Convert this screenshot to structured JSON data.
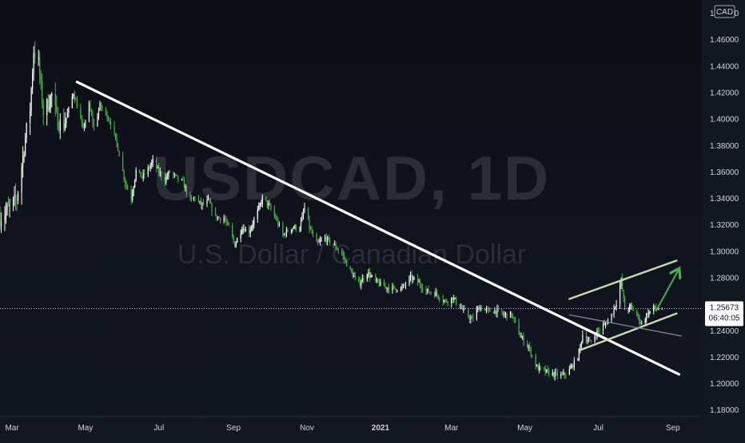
{
  "chart_data": {
    "type": "candlestick",
    "watermark": {
      "symbol_text": "USDCAD, 1D",
      "description": "U.S. Dollar / Canadian Dollar"
    },
    "currency_label": "CAD",
    "y_ticks": [
      "1.48000",
      "1.46000",
      "1.44000",
      "1.42000",
      "1.40000",
      "1.38000",
      "1.36000",
      "1.34000",
      "1.32000",
      "1.30000",
      "1.28000",
      "1.24000",
      "1.22000",
      "1.20000",
      "1.18000"
    ],
    "y_tick_values": [
      1.48,
      1.46,
      1.44,
      1.42,
      1.4,
      1.38,
      1.36,
      1.34,
      1.32,
      1.3,
      1.28,
      1.24,
      1.22,
      1.2,
      1.18
    ],
    "ylim": [
      1.175,
      1.49
    ],
    "x_ticks": [
      "Mar",
      "May",
      "Jul",
      "Sep",
      "Nov",
      "2021",
      "Mar",
      "May",
      "Jul",
      "Sep"
    ],
    "x_tick_dates": [
      "2020-03-01",
      "2020-05-01",
      "2020-07-01",
      "2020-09-01",
      "2020-11-01",
      "2021-01-01",
      "2021-03-01",
      "2021-05-01",
      "2021-07-01",
      "2021-09-01"
    ],
    "xlim": [
      "2020-02-20",
      "2021-09-25"
    ],
    "current_price": {
      "value": 1.25673,
      "label": "1.25673",
      "countdown": "06:40:05",
      "color": "#ffffff"
    },
    "colors": {
      "up": "#ffffff",
      "down": "#4caf50",
      "background": "#131722",
      "text": "#d1d4dc"
    },
    "price_path": [
      [
        "2020-02-20",
        1.325
      ],
      [
        "2020-02-28",
        1.333
      ],
      [
        "2020-03-05",
        1.34
      ],
      [
        "2020-03-09",
        1.365
      ],
      [
        "2020-03-13",
        1.392
      ],
      [
        "2020-03-16",
        1.408
      ],
      [
        "2020-03-19",
        1.452
      ],
      [
        "2020-03-23",
        1.442
      ],
      [
        "2020-03-27",
        1.405
      ],
      [
        "2020-03-31",
        1.412
      ],
      [
        "2020-04-03",
        1.418
      ],
      [
        "2020-04-08",
        1.398
      ],
      [
        "2020-04-13",
        1.395
      ],
      [
        "2020-04-17",
        1.407
      ],
      [
        "2020-04-21",
        1.42
      ],
      [
        "2020-04-24",
        1.41
      ],
      [
        "2020-04-29",
        1.392
      ],
      [
        "2020-05-04",
        1.41
      ],
      [
        "2020-05-08",
        1.394
      ],
      [
        "2020-05-13",
        1.41
      ],
      [
        "2020-05-18",
        1.404
      ],
      [
        "2020-05-22",
        1.397
      ],
      [
        "2020-05-28",
        1.378
      ],
      [
        "2020-06-03",
        1.352
      ],
      [
        "2020-06-08",
        1.34
      ],
      [
        "2020-06-12",
        1.361
      ],
      [
        "2020-06-17",
        1.356
      ],
      [
        "2020-06-22",
        1.362
      ],
      [
        "2020-06-26",
        1.368
      ],
      [
        "2020-07-01",
        1.36
      ],
      [
        "2020-07-06",
        1.354
      ],
      [
        "2020-07-10",
        1.36
      ],
      [
        "2020-07-15",
        1.356
      ],
      [
        "2020-07-21",
        1.352
      ],
      [
        "2020-07-27",
        1.338
      ],
      [
        "2020-07-31",
        1.341
      ],
      [
        "2020-08-05",
        1.335
      ],
      [
        "2020-08-11",
        1.338
      ],
      [
        "2020-08-17",
        1.326
      ],
      [
        "2020-08-24",
        1.325
      ],
      [
        "2020-08-28",
        1.318
      ],
      [
        "2020-09-02",
        1.305
      ],
      [
        "2020-09-08",
        1.318
      ],
      [
        "2020-09-14",
        1.315
      ],
      [
        "2020-09-21",
        1.33
      ],
      [
        "2020-09-25",
        1.34
      ],
      [
        "2020-09-30",
        1.335
      ],
      [
        "2020-10-06",
        1.325
      ],
      [
        "2020-10-12",
        1.312
      ],
      [
        "2020-10-19",
        1.318
      ],
      [
        "2020-10-26",
        1.318
      ],
      [
        "2020-10-30",
        1.333
      ],
      [
        "2020-11-03",
        1.318
      ],
      [
        "2020-11-09",
        1.305
      ],
      [
        "2020-11-16",
        1.31
      ],
      [
        "2020-11-23",
        1.305
      ],
      [
        "2020-11-30",
        1.298
      ],
      [
        "2020-12-07",
        1.285
      ],
      [
        "2020-12-14",
        1.275
      ],
      [
        "2020-12-21",
        1.284
      ],
      [
        "2020-12-28",
        1.277
      ],
      [
        "2021-01-05",
        1.273
      ],
      [
        "2021-01-11",
        1.272
      ],
      [
        "2021-01-19",
        1.272
      ],
      [
        "2021-01-26",
        1.28
      ],
      [
        "2021-02-01",
        1.277
      ],
      [
        "2021-02-08",
        1.27
      ],
      [
        "2021-02-16",
        1.268
      ],
      [
        "2021-02-24",
        1.262
      ],
      [
        "2021-03-02",
        1.265
      ],
      [
        "2021-03-10",
        1.256
      ],
      [
        "2021-03-18",
        1.248
      ],
      [
        "2021-03-24",
        1.258
      ],
      [
        "2021-03-31",
        1.255
      ],
      [
        "2021-04-07",
        1.255
      ],
      [
        "2021-04-13",
        1.252
      ],
      [
        "2021-04-20",
        1.252
      ],
      [
        "2021-04-27",
        1.236
      ],
      [
        "2021-05-04",
        1.228
      ],
      [
        "2021-05-11",
        1.212
      ],
      [
        "2021-05-18",
        1.209
      ],
      [
        "2021-05-25",
        1.207
      ],
      [
        "2021-06-01",
        1.206
      ],
      [
        "2021-06-07",
        1.21
      ],
      [
        "2021-06-14",
        1.22
      ],
      [
        "2021-06-18",
        1.237
      ],
      [
        "2021-06-24",
        1.231
      ],
      [
        "2021-06-30",
        1.239
      ],
      [
        "2021-07-07",
        1.245
      ],
      [
        "2021-07-12",
        1.252
      ],
      [
        "2021-07-16",
        1.262
      ],
      [
        "2021-07-20",
        1.278
      ],
      [
        "2021-07-23",
        1.256
      ],
      [
        "2021-07-28",
        1.258
      ],
      [
        "2021-08-02",
        1.252
      ],
      [
        "2021-08-06",
        1.245
      ],
      [
        "2021-08-10",
        1.252
      ],
      [
        "2021-08-16",
        1.257
      ],
      [
        "2021-08-23",
        1.257
      ]
    ],
    "annotations": [
      {
        "kind": "trendline",
        "color": "#ffffff",
        "points": [
          [
            "2020-04-24",
            1.428
          ],
          [
            "2021-09-06",
            1.207
          ]
        ]
      },
      {
        "kind": "channel-top",
        "color": "#c8dcb4",
        "points": [
          [
            "2021-06-07",
            1.264
          ],
          [
            "2021-09-04",
            1.293
          ]
        ]
      },
      {
        "kind": "channel-bottom",
        "color": "#c8dcb4",
        "points": [
          [
            "2021-06-15",
            1.225
          ],
          [
            "2021-09-04",
            1.253
          ]
        ]
      },
      {
        "kind": "grey-line",
        "color": "#7d8187",
        "points": [
          [
            "2021-06-07",
            1.252
          ],
          [
            "2021-09-08",
            1.236
          ]
        ]
      },
      {
        "kind": "arrow",
        "color": "#4caf50",
        "points": [
          [
            "2021-08-18",
            1.255
          ],
          [
            "2021-09-05",
            1.285
          ]
        ]
      }
    ]
  }
}
